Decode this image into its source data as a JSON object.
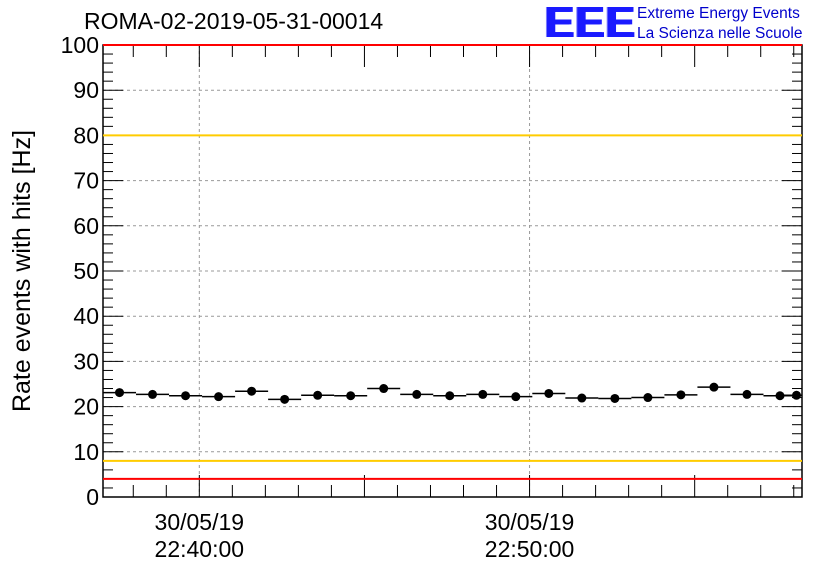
{
  "title": "ROMA-02-2019-05-31-00014",
  "logo": {
    "mark": "EEE",
    "line1": "Extreme Energy Events",
    "line2": "La Scienza nelle Scuole"
  },
  "chart_data": {
    "type": "scatter",
    "title": "ROMA-02-2019-05-31-00014",
    "ylabel": "Rate events with hits [Hz]",
    "xlabel": "",
    "ylim": [
      0,
      100
    ],
    "yticks": [
      0,
      10,
      20,
      30,
      40,
      50,
      60,
      70,
      80,
      90,
      100
    ],
    "xticks": [
      {
        "date": "30/05/19",
        "time": "22:40:00"
      },
      {
        "date": "30/05/19",
        "time": "22:50:00"
      }
    ],
    "grid": true,
    "x_unit": "time of day",
    "x_range": [
      "22:37:05",
      "22:58:15"
    ],
    "bin_width_seconds": 60,
    "x": [
      "22:37:35",
      "22:38:35",
      "22:39:35",
      "22:40:35",
      "22:41:35",
      "22:42:35",
      "22:43:35",
      "22:44:35",
      "22:45:35",
      "22:46:35",
      "22:47:35",
      "22:48:35",
      "22:49:35",
      "22:50:35",
      "22:51:35",
      "22:52:35",
      "22:53:35",
      "22:54:35",
      "22:55:35",
      "22:56:35",
      "22:57:35",
      "22:58:05"
    ],
    "values": [
      23.1,
      22.7,
      22.4,
      22.2,
      23.4,
      21.6,
      22.5,
      22.4,
      24.0,
      22.7,
      22.4,
      22.7,
      22.2,
      22.9,
      21.9,
      21.8,
      22.0,
      22.6,
      24.3,
      22.7,
      22.4,
      22.5
    ],
    "reference_lines": [
      {
        "y": 100,
        "color": "#ff0000"
      },
      {
        "y": 80,
        "color": "#ffcc00"
      },
      {
        "y": 8,
        "color": "#ffcc00"
      },
      {
        "y": 4,
        "color": "#ff0000"
      }
    ]
  }
}
